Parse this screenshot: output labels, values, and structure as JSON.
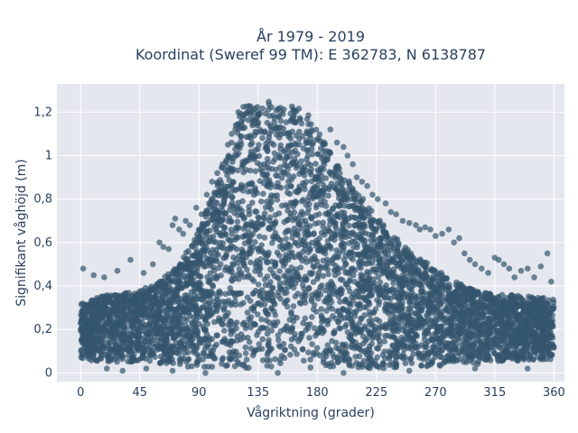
{
  "chart_data": {
    "type": "scatter",
    "title": "År 1979 - 2019",
    "subtitle": "Koordinat (Sweref 99 TM): E 362783, N 6138787",
    "xlabel": "Vågriktning (grader)",
    "ylabel": "Signifikant våghöjd (m)",
    "xlim": [
      -18,
      368
    ],
    "ylim": [
      -0.04,
      1.33
    ],
    "xticks": [
      0,
      45,
      90,
      135,
      180,
      225,
      270,
      315,
      360
    ],
    "xtick_labels": [
      "0",
      "45",
      "90",
      "135",
      "180",
      "225",
      "270",
      "315",
      "360"
    ],
    "yticks": [
      0,
      0.2,
      0.4,
      0.6,
      0.8,
      1.0,
      1.2
    ],
    "ytick_labels": [
      "0",
      "0,2",
      "0,4",
      "0,6",
      "0,8",
      "1",
      "1,2"
    ],
    "grid": true,
    "marker_color": "#34566e",
    "plot_background": "#e5e7ee",
    "envelope": {
      "x": [
        0,
        20,
        45,
        60,
        75,
        90,
        105,
        115,
        120,
        125,
        135,
        150,
        170,
        180,
        195,
        210,
        225,
        240,
        255,
        270,
        285,
        300,
        315,
        330,
        345,
        360
      ],
      "y_upper": [
        0.32,
        0.36,
        0.38,
        0.42,
        0.5,
        0.66,
        0.9,
        1.1,
        1.18,
        1.24,
        1.26,
        1.24,
        1.22,
        1.12,
        0.96,
        0.84,
        0.72,
        0.62,
        0.54,
        0.48,
        0.42,
        0.38,
        0.36,
        0.36,
        0.35,
        0.34
      ],
      "y_lower": [
        0.06,
        0.05,
        0.05,
        0.04,
        0.03,
        0.02,
        0.02,
        0.02,
        0.02,
        0.02,
        0.02,
        0.02,
        0.02,
        0.02,
        0.02,
        0.02,
        0.02,
        0.02,
        0.03,
        0.03,
        0.04,
        0.04,
        0.05,
        0.05,
        0.06,
        0.06
      ]
    },
    "outliers": [
      {
        "x": 2,
        "y": 0.48
      },
      {
        "x": 10,
        "y": 0.45
      },
      {
        "x": 18,
        "y": 0.44
      },
      {
        "x": 28,
        "y": 0.47
      },
      {
        "x": 38,
        "y": 0.52
      },
      {
        "x": 48,
        "y": 0.46
      },
      {
        "x": 55,
        "y": 0.5
      },
      {
        "x": 60,
        "y": 0.6
      },
      {
        "x": 63,
        "y": 0.58
      },
      {
        "x": 67,
        "y": 0.57
      },
      {
        "x": 70,
        "y": 0.68
      },
      {
        "x": 72,
        "y": 0.71
      },
      {
        "x": 75,
        "y": 0.66
      },
      {
        "x": 78,
        "y": 0.64
      },
      {
        "x": 80,
        "y": 0.7
      },
      {
        "x": 83,
        "y": 0.68
      },
      {
        "x": 88,
        "y": 0.76
      },
      {
        "x": 92,
        "y": 0.73
      },
      {
        "x": 96,
        "y": 0.82
      },
      {
        "x": 100,
        "y": 0.88
      },
      {
        "x": 104,
        "y": 0.92
      },
      {
        "x": 108,
        "y": 0.96
      },
      {
        "x": 112,
        "y": 1.05
      },
      {
        "x": 115,
        "y": 1.1
      },
      {
        "x": 118,
        "y": 1.14
      },
      {
        "x": 120,
        "y": 1.2
      },
      {
        "x": 190,
        "y": 1.12
      },
      {
        "x": 195,
        "y": 1.06
      },
      {
        "x": 200,
        "y": 1.04
      },
      {
        "x": 203,
        "y": 1.0
      },
      {
        "x": 207,
        "y": 0.96
      },
      {
        "x": 210,
        "y": 0.9
      },
      {
        "x": 214,
        "y": 0.88
      },
      {
        "x": 218,
        "y": 0.86
      },
      {
        "x": 222,
        "y": 0.82
      },
      {
        "x": 226,
        "y": 0.8
      },
      {
        "x": 232,
        "y": 0.78
      },
      {
        "x": 236,
        "y": 0.74
      },
      {
        "x": 240,
        "y": 0.73
      },
      {
        "x": 245,
        "y": 0.7
      },
      {
        "x": 250,
        "y": 0.69
      },
      {
        "x": 255,
        "y": 0.68
      },
      {
        "x": 258,
        "y": 0.66
      },
      {
        "x": 262,
        "y": 0.67
      },
      {
        "x": 266,
        "y": 0.66
      },
      {
        "x": 270,
        "y": 0.63
      },
      {
        "x": 275,
        "y": 0.64
      },
      {
        "x": 280,
        "y": 0.66
      },
      {
        "x": 284,
        "y": 0.6
      },
      {
        "x": 288,
        "y": 0.62
      },
      {
        "x": 292,
        "y": 0.55
      },
      {
        "x": 296,
        "y": 0.52
      },
      {
        "x": 300,
        "y": 0.5
      },
      {
        "x": 305,
        "y": 0.48
      },
      {
        "x": 310,
        "y": 0.46
      },
      {
        "x": 315,
        "y": 0.53
      },
      {
        "x": 318,
        "y": 0.52
      },
      {
        "x": 322,
        "y": 0.5
      },
      {
        "x": 326,
        "y": 0.48
      },
      {
        "x": 330,
        "y": 0.44
      },
      {
        "x": 335,
        "y": 0.47
      },
      {
        "x": 340,
        "y": 0.48
      },
      {
        "x": 345,
        "y": 0.44
      },
      {
        "x": 350,
        "y": 0.49
      },
      {
        "x": 355,
        "y": 0.55
      },
      {
        "x": 358,
        "y": 0.42
      },
      {
        "x": 20,
        "y": 0.02
      },
      {
        "x": 32,
        "y": 0.01
      },
      {
        "x": 50,
        "y": 0.02
      },
      {
        "x": 70,
        "y": 0.01
      },
      {
        "x": 95,
        "y": 0.0
      },
      {
        "x": 150,
        "y": 0.0
      },
      {
        "x": 200,
        "y": 0.0
      },
      {
        "x": 250,
        "y": 0.01
      },
      {
        "x": 300,
        "y": 0.02
      },
      {
        "x": 340,
        "y": 0.02
      }
    ]
  }
}
